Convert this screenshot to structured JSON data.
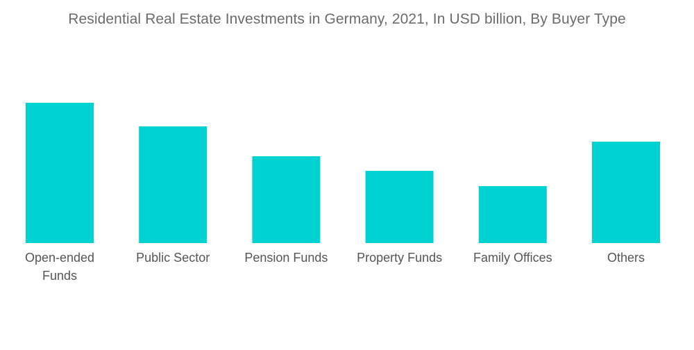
{
  "chart_data": {
    "type": "bar",
    "title": "Residential Real Estate Investments in Germany, 2021, In USD billion, By Buyer Type",
    "xlabel": "",
    "ylabel": "",
    "categories": [
      "Open-ended Funds",
      "Public Sector",
      "Pension Funds",
      "Property Funds",
      "Family Offices",
      "Others"
    ],
    "category_lines": [
      [
        "Open-ended",
        "Funds"
      ],
      [
        "Public Sector"
      ],
      [
        "Pension Funds"
      ],
      [
        "Property Funds"
      ],
      [
        "Family Offices"
      ],
      [
        "Others"
      ]
    ],
    "values": [
      202,
      168,
      125,
      104,
      82,
      146
    ],
    "ylim": [
      0,
      230
    ],
    "grid": false,
    "legend": "none",
    "colors": {
      "bar": "#00d1d1"
    }
  }
}
